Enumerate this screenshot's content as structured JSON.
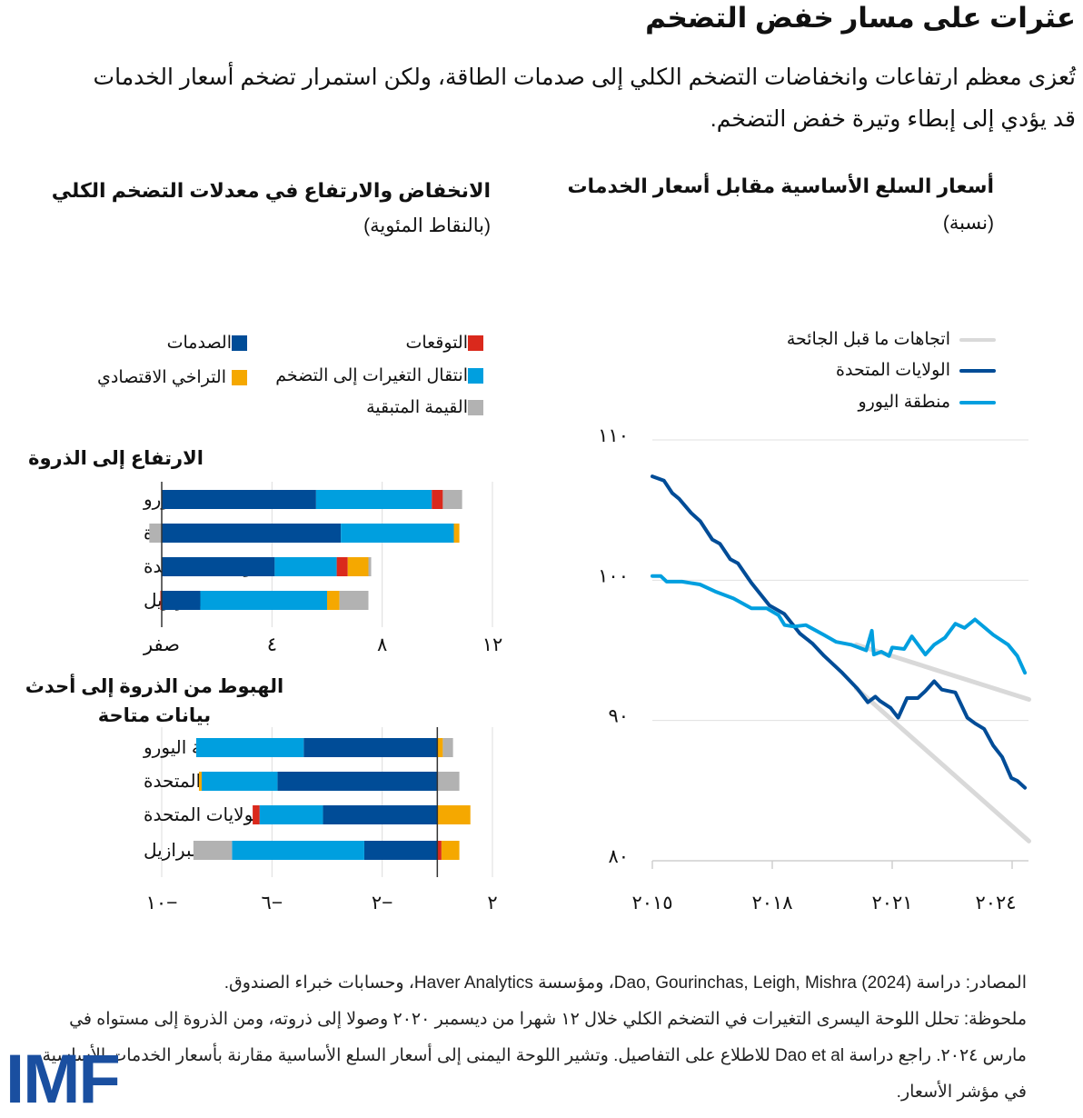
{
  "header": {
    "title": "عثرات على مسار خفض التضخم",
    "subtitle": "تُعزى معظم ارتفاعات وانخفاضات التضخم الكلي إلى صدمات الطاقة، ولكن استمرار تضخم أسعار الخدمات قد يؤدي إلى إبطاء وتيرة خفض التضخم."
  },
  "colors": {
    "shocks": "#004c97",
    "passthrough": "#009fdf",
    "expectations": "#da291c",
    "slack": "#f5a800",
    "residual": "#b2b2b2",
    "us": "#004c97",
    "euro": "#009fdf",
    "trend": "#d9d9d9"
  },
  "chart_data": [
    {
      "type": "bar",
      "orientation": "horizontal-stacked",
      "title": "الانخفاض والارتفاع في معدلات التضخم الكلي",
      "subtitle": "(بالنقاط المئوية)",
      "legend": [
        {
          "key": "expectations",
          "label": "التوقعات"
        },
        {
          "key": "shocks",
          "label": "الصدمات"
        },
        {
          "key": "passthrough",
          "label": "انتقال التغيرات إلى التضخم"
        },
        {
          "key": "slack",
          "label": "التراخي الاقتصادي"
        },
        {
          "key": "residual",
          "label": "القيمة المتبقية"
        }
      ],
      "panels": [
        {
          "title": "الارتفاع إلى الذروة",
          "xlim": [
            0,
            12
          ],
          "ticks": [
            {
              "v": 0,
              "label": "صفر"
            },
            {
              "v": 4,
              "label": "٤"
            },
            {
              "v": 8,
              "label": "٨"
            },
            {
              "v": 12,
              "label": "١٢"
            }
          ],
          "categories": [
            "منطقة اليورو",
            "المملكة المتحدة",
            "الولايات المتحدة",
            "البرازيل"
          ],
          "series": {
            "shocks": [
              5.6,
              6.5,
              4.1,
              1.4
            ],
            "passthrough": [
              4.2,
              4.1,
              2.25,
              4.6
            ],
            "expectations": [
              0.4,
              0,
              0.4,
              -0.05
            ],
            "slack": [
              0,
              0.2,
              0.75,
              0.45
            ],
            "residual": [
              0.7,
              -0.45,
              0.1,
              1.05
            ]
          }
        },
        {
          "title": "الهبوط من الذروة إلى أحدث بيانات متاحة",
          "xlim": [
            -10,
            2
          ],
          "ticks": [
            {
              "v": -10,
              "label": "١٠−"
            },
            {
              "v": -6,
              "label": "٦−"
            },
            {
              "v": -2,
              "label": "٢−"
            },
            {
              "v": 2,
              "label": "٢"
            }
          ],
          "categories": [
            "منطقة اليورو",
            "المملكة المتحدة",
            "الولايات المتحدة",
            "البرازيل"
          ],
          "series": {
            "shocks": [
              -4.85,
              -5.8,
              -4.15,
              -2.65
            ],
            "passthrough": [
              -3.9,
              -2.75,
              -2.3,
              -4.8
            ],
            "expectations": [
              0,
              0,
              -0.25,
              0.15
            ],
            "slack": [
              0.2,
              -0.1,
              1.2,
              0.65
            ],
            "residual": [
              0.37,
              0.8,
              0,
              -1.4
            ]
          }
        }
      ]
    },
    {
      "type": "line",
      "title": "أسعار السلع الأساسية مقابل أسعار الخدمات",
      "subtitle": "(نسبة)",
      "ylim": [
        80,
        110
      ],
      "xlim": [
        2015,
        2024.42
      ],
      "yticks": [
        {
          "v": 110,
          "label": "١١٠"
        },
        {
          "v": 100,
          "label": "١٠٠"
        },
        {
          "v": 90,
          "label": "٩٠"
        },
        {
          "v": 80,
          "label": "٨٠"
        }
      ],
      "xticks": [
        {
          "v": 2015,
          "label": "٢٠١٥"
        },
        {
          "v": 2018,
          "label": "٢٠١٨"
        },
        {
          "v": 2021,
          "label": "٢٠٢١"
        },
        {
          "v": 2024,
          "label": "٢٠٢٤"
        }
      ],
      "grid": true,
      "legend_position": "top-right",
      "series": [
        {
          "key": "trend",
          "name": "اتجاهات ما قبل الجائحة",
          "points": [
            [
              2020.1,
              92.3
            ],
            [
              2024.42,
              81.4
            ]
          ]
        },
        {
          "key": "trend",
          "name": "اتجاهات ما قبل الجائحة",
          "points": [
            [
              2020.1,
              95.4
            ],
            [
              2024.42,
              91.5
            ]
          ]
        },
        {
          "key": "us",
          "name": "الولايات المتحدة",
          "points": [
            [
              2015.0,
              107.4
            ],
            [
              2015.29,
              107.1
            ],
            [
              2015.5,
              106.2
            ],
            [
              2015.67,
              105.8
            ],
            [
              2015.97,
              104.8
            ],
            [
              2016.2,
              104.2
            ],
            [
              2016.5,
              102.9
            ],
            [
              2016.69,
              102.6
            ],
            [
              2016.95,
              101.5
            ],
            [
              2017.14,
              101.2
            ],
            [
              2017.48,
              99.8
            ],
            [
              2017.93,
              98.2
            ],
            [
              2018.3,
              97.6
            ],
            [
              2018.69,
              96.2
            ],
            [
              2019.0,
              95.5
            ],
            [
              2019.3,
              94.6
            ],
            [
              2019.75,
              93.4
            ],
            [
              2020.12,
              92.3
            ],
            [
              2020.39,
              91.3
            ],
            [
              2020.58,
              91.7
            ],
            [
              2020.69,
              91.4
            ],
            [
              2020.96,
              90.9
            ],
            [
              2021.15,
              90.2
            ],
            [
              2021.37,
              91.6
            ],
            [
              2021.64,
              91.6
            ],
            [
              2021.83,
              92.1
            ],
            [
              2022.05,
              92.8
            ],
            [
              2022.24,
              92.2
            ],
            [
              2022.58,
              92.0
            ],
            [
              2022.88,
              90.2
            ],
            [
              2023.07,
              89.8
            ],
            [
              2023.3,
              89.4
            ],
            [
              2023.53,
              88.2
            ],
            [
              2023.75,
              87.4
            ],
            [
              2023.98,
              85.9
            ],
            [
              2024.13,
              85.7
            ],
            [
              2024.32,
              85.2
            ]
          ]
        },
        {
          "key": "euro",
          "name": "منطقة اليورو",
          "points": [
            [
              2015.0,
              100.3
            ],
            [
              2015.21,
              100.3
            ],
            [
              2015.36,
              99.9
            ],
            [
              2015.74,
              99.9
            ],
            [
              2016.19,
              99.7
            ],
            [
              2016.57,
              99.2
            ],
            [
              2017.03,
              98.7
            ],
            [
              2017.48,
              98.0
            ],
            [
              2017.86,
              98.0
            ],
            [
              2018.16,
              97.5
            ],
            [
              2018.31,
              96.8
            ],
            [
              2018.54,
              96.7
            ],
            [
              2018.84,
              96.8
            ],
            [
              2019.29,
              96.1
            ],
            [
              2019.6,
              95.6
            ],
            [
              2019.97,
              95.4
            ],
            [
              2020.35,
              95.0
            ],
            [
              2020.49,
              96.4
            ],
            [
              2020.54,
              94.7
            ],
            [
              2020.73,
              94.9
            ],
            [
              2020.92,
              94.6
            ],
            [
              2021.0,
              95.2
            ],
            [
              2021.3,
              95.1
            ],
            [
              2021.49,
              96.0
            ],
            [
              2021.83,
              94.7
            ],
            [
              2022.05,
              95.4
            ],
            [
              2022.32,
              95.9
            ],
            [
              2022.58,
              96.9
            ],
            [
              2022.81,
              96.6
            ],
            [
              2023.07,
              97.2
            ],
            [
              2023.53,
              96.1
            ],
            [
              2023.9,
              95.4
            ],
            [
              2024.13,
              94.6
            ],
            [
              2024.32,
              93.4
            ]
          ]
        }
      ]
    }
  ],
  "notes": {
    "sources": "المصادر: دراسة Dao, Gourinchas, Leigh, Mishra (2024)، ومؤسسة Haver Analytics، وحسابات خبراء الصندوق.",
    "note": "ملحوظة: تحلل اللوحة اليسرى التغيرات في التضخم الكلي خلال ١٢ شهرا من ديسمبر ٢٠٢٠ وصولا إلى ذروته، ومن الذروة إلى مستواه في مارس ٢٠٢٤. راجع دراسة Dao et al للاطلاع على التفاصيل. وتشير اللوحة اليمنى إلى أسعار السلع الأساسية مقارنة بأسعار الخدمات الأساسية في مؤشر الأسعار."
  },
  "logo": "IMF"
}
